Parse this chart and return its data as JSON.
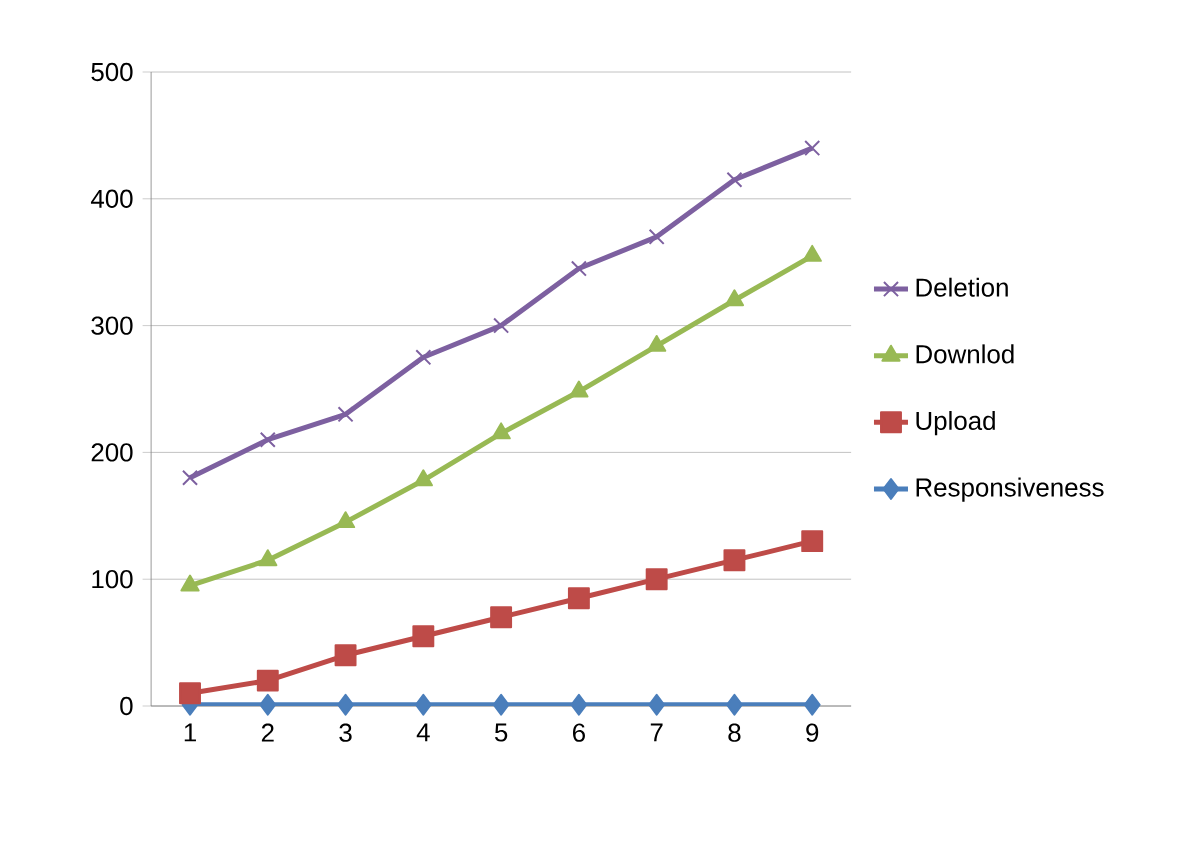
{
  "chart_data": {
    "type": "line",
    "categories": [
      "1",
      "2",
      "3",
      "4",
      "5",
      "6",
      "7",
      "8",
      "9"
    ],
    "series": [
      {
        "name": "Responsiveness",
        "color": "#4a7ebb",
        "marker": "diamond",
        "values": [
          1,
          1,
          1,
          1,
          1,
          1,
          1,
          1,
          1
        ]
      },
      {
        "name": "Upload",
        "color": "#be4b48",
        "marker": "square",
        "values": [
          10,
          20,
          40,
          55,
          70,
          85,
          100,
          115,
          130
        ]
      },
      {
        "name": "Downlod",
        "color": "#98b954",
        "marker": "triangle",
        "values": [
          95,
          115,
          145,
          178,
          215,
          248,
          284,
          320,
          355
        ]
      },
      {
        "name": "Deletion",
        "color": "#7d60a0",
        "marker": "cross",
        "values": [
          180,
          210,
          230,
          275,
          300,
          345,
          370,
          415,
          440
        ]
      }
    ],
    "ylim": [
      0,
      500
    ],
    "yticks": [
      0,
      100,
      200,
      300,
      400,
      500
    ],
    "grid": "y",
    "legend": "right",
    "line_style": "solid"
  }
}
